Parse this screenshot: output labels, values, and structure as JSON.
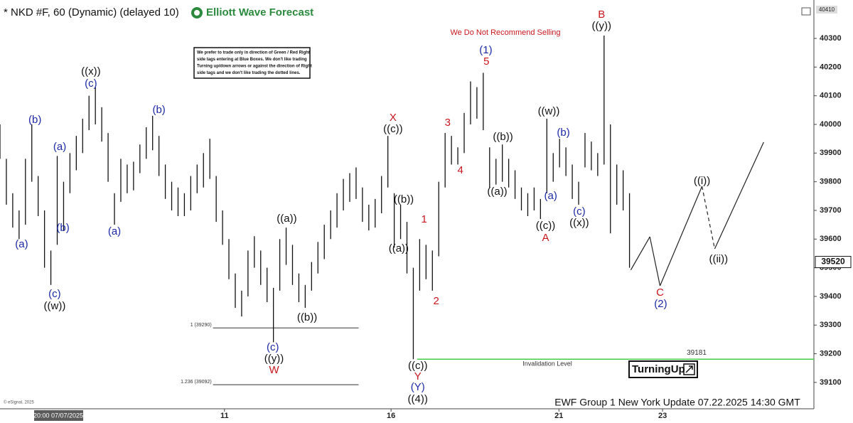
{
  "chart_data": {
    "type": "ohlc",
    "title": "* NKD #F, 60 (Dynamic) (delayed 10)",
    "brand": "Elliott Wave Forecast",
    "headline": "We Do Not Recommend Selling",
    "notice": [
      "We prefer to trade only in direction of Green / Red Right",
      "side tags entering at Blue Boxes. We don't like trading",
      "Turning up/down arrows or against the direction of Right",
      "side tags and we don't like trading the dotted lines."
    ],
    "footer": "EWF Group 1 New York Update 07.22.2025 14:30 GMT",
    "copyright": "© eSignal, 2025",
    "cursor_date": "20:00 07/07/2025",
    "logo_text": "TurningUp",
    "bar_color": "#111111",
    "xlim": [
      0,
      128
    ],
    "ylim": [
      39008,
      40434
    ],
    "yticks": [
      39100,
      39200,
      39300,
      39400,
      39500,
      39600,
      39700,
      39800,
      39900,
      40000,
      40100,
      40200,
      40300
    ],
    "xticks": [
      {
        "value": 35.3,
        "label": "11"
      },
      {
        "value": 61.5,
        "label": "16"
      },
      {
        "value": 87.9,
        "label": "21"
      },
      {
        "value": 104.2,
        "label": "23"
      }
    ],
    "top_price": 40410,
    "last_price": 39520,
    "bars": {
      "x": [
        0,
        1,
        2,
        3,
        4,
        5,
        6,
        7,
        8,
        9,
        10,
        11,
        12,
        13,
        14,
        15,
        16,
        17,
        18,
        19,
        20,
        21,
        22,
        23,
        24,
        25,
        26,
        27,
        28,
        29,
        30,
        31,
        32,
        33,
        34,
        35,
        36,
        37,
        38,
        39,
        40,
        41,
        42,
        43,
        44,
        45,
        46,
        47,
        48,
        49,
        50,
        51,
        52,
        53,
        54,
        55,
        56,
        57,
        58,
        59,
        60,
        61,
        62,
        63,
        64,
        65,
        66,
        67,
        68,
        69,
        70,
        71,
        72,
        73,
        74,
        75,
        76,
        77,
        78,
        79,
        80,
        81,
        82,
        83,
        84,
        85,
        86,
        87,
        88,
        89,
        90,
        91,
        92,
        93,
        94,
        95,
        96,
        97,
        98,
        99
      ],
      "high": [
        40000,
        39880,
        39760,
        39700,
        39880,
        40000,
        39820,
        39700,
        39560,
        39890,
        39800,
        39900,
        39960,
        40020,
        40100,
        40130,
        40060,
        39970,
        39760,
        39880,
        39860,
        39870,
        39930,
        39990,
        40030,
        39960,
        39860,
        39800,
        39780,
        39760,
        39820,
        39860,
        39900,
        39950,
        39820,
        39700,
        39600,
        39480,
        39420,
        39560,
        39610,
        39560,
        39500,
        39430,
        39600,
        39640,
        39580,
        39480,
        39440,
        39520,
        39590,
        39650,
        39700,
        39760,
        39810,
        39830,
        39850,
        39780,
        39720,
        39740,
        39820,
        39960,
        39760,
        39720,
        39660,
        39500,
        39600,
        39580,
        39560,
        39800,
        39970,
        39960,
        39920,
        40040,
        40150,
        40130,
        40180,
        39920,
        39880,
        39930,
        39880,
        39840,
        39780,
        39760,
        39780,
        39740,
        40020,
        39900,
        39950,
        39920,
        39860,
        39800,
        39970,
        39940,
        39900,
        40310,
        40000,
        39860,
        39840,
        39760
      ],
      "low": [
        39880,
        39720,
        39640,
        39600,
        39650,
        39800,
        39680,
        39500,
        39440,
        39580,
        39630,
        39760,
        39840,
        39900,
        39980,
        40000,
        39940,
        39800,
        39650,
        39730,
        39760,
        39770,
        39830,
        39880,
        39910,
        39820,
        39740,
        39700,
        39680,
        39680,
        39700,
        39760,
        39780,
        39810,
        39660,
        39580,
        39460,
        39360,
        39330,
        39400,
        39500,
        39440,
        39380,
        39240,
        39420,
        39510,
        39440,
        39380,
        39360,
        39420,
        39480,
        39530,
        39600,
        39640,
        39700,
        39730,
        39740,
        39660,
        39630,
        39640,
        39690,
        39780,
        39570,
        39600,
        39480,
        39181,
        39420,
        39460,
        39420,
        39540,
        39780,
        39860,
        39860,
        39900,
        40000,
        40020,
        39980,
        39780,
        39790,
        39800,
        39780,
        39740,
        39700,
        39680,
        39700,
        39670,
        39760,
        39800,
        39850,
        39820,
        39740,
        39720,
        39850,
        39840,
        39820,
        39860,
        39620,
        39720,
        39700,
        39500
      ]
    },
    "levels": [
      {
        "value": 39290,
        "label": "1 (39290)",
        "x_range": [
          33.5,
          56.4
        ]
      },
      {
        "value": 39092,
        "label": "1.236 (39092)",
        "x_range": [
          33.5,
          56.4
        ]
      }
    ],
    "invalidation": {
      "value": 39181,
      "name": "Invalidation Level",
      "color": "#44cc44",
      "x_range": [
        65.6,
        128
      ]
    },
    "projection": {
      "x": [
        99.2,
        102.2,
        103.8,
        110.4,
        112.4,
        120.1
      ],
      "y": [
        39492,
        39608,
        39437,
        39784,
        39566,
        39938
      ],
      "dashed_segments": [
        3
      ]
    },
    "label_colors": {
      "blue": "#1c2aa6",
      "red": "#c8161d",
      "black": "#111111"
    },
    "annotations": [
      {
        "text": "(a)",
        "x": 3.4,
        "y": 39581,
        "color": "blue"
      },
      {
        "text": "(b)",
        "x": 5.5,
        "y": 40015,
        "color": "blue"
      },
      {
        "text": "(c)",
        "x": 8.6,
        "y": 39407,
        "color": "blue"
      },
      {
        "text": "((w))",
        "x": 8.6,
        "y": 39365,
        "color": "black"
      },
      {
        "text": "(a)",
        "x": 9.4,
        "y": 39921,
        "color": "blue"
      },
      {
        "text": "(b)",
        "x": 9.9,
        "y": 39638,
        "color": "blue"
      },
      {
        "text": "((x))",
        "x": 14.3,
        "y": 40183,
        "color": "black"
      },
      {
        "text": "(c)",
        "x": 14.3,
        "y": 40141,
        "color": "blue"
      },
      {
        "text": "(a)",
        "x": 18,
        "y": 39625,
        "color": "blue"
      },
      {
        "text": "(b)",
        "x": 25,
        "y": 40050,
        "color": "blue"
      },
      {
        "text": "((a))",
        "x": 45.1,
        "y": 39670,
        "color": "black"
      },
      {
        "text": "((b))",
        "x": 48.3,
        "y": 39325,
        "color": "black"
      },
      {
        "text": "(c)",
        "x": 42.9,
        "y": 39221,
        "color": "blue"
      },
      {
        "text": "((y))",
        "x": 43.1,
        "y": 39181,
        "color": "black"
      },
      {
        "text": "W",
        "x": 43.1,
        "y": 39142,
        "color": "red"
      },
      {
        "text": "X",
        "x": 61.8,
        "y": 40022,
        "color": "red"
      },
      {
        "text": "((c))",
        "x": 61.8,
        "y": 39983,
        "color": "black"
      },
      {
        "text": "((b))",
        "x": 63.5,
        "y": 39737,
        "color": "black"
      },
      {
        "text": "((a))",
        "x": 62.7,
        "y": 39566,
        "color": "black"
      },
      {
        "text": "1",
        "x": 66.7,
        "y": 39668,
        "color": "red"
      },
      {
        "text": "2",
        "x": 68.6,
        "y": 39382,
        "color": "red"
      },
      {
        "text": "3",
        "x": 70.4,
        "y": 40005,
        "color": "red"
      },
      {
        "text": "4",
        "x": 72.4,
        "y": 39839,
        "color": "red"
      },
      {
        "text": "5",
        "x": 76.5,
        "y": 40218,
        "color": "red"
      },
      {
        "text": "(1)",
        "x": 76.4,
        "y": 40258,
        "color": "blue"
      },
      {
        "text": "((b))",
        "x": 79.1,
        "y": 39955,
        "color": "black"
      },
      {
        "text": "((a))",
        "x": 78.2,
        "y": 39764,
        "color": "black"
      },
      {
        "text": "((w))",
        "x": 86.3,
        "y": 40045,
        "color": "black"
      },
      {
        "text": "(b)",
        "x": 88.6,
        "y": 39970,
        "color": "blue"
      },
      {
        "text": "(a)",
        "x": 86.6,
        "y": 39749,
        "color": "blue"
      },
      {
        "text": "(c)",
        "x": 91.1,
        "y": 39695,
        "color": "blue"
      },
      {
        "text": "((x))",
        "x": 91.1,
        "y": 39655,
        "color": "black"
      },
      {
        "text": "((c))",
        "x": 85.8,
        "y": 39645,
        "color": "black"
      },
      {
        "text": "A",
        "x": 85.8,
        "y": 39603,
        "color": "red"
      },
      {
        "text": "B",
        "x": 94.6,
        "y": 40382,
        "color": "red"
      },
      {
        "text": "((y))",
        "x": 94.6,
        "y": 40342,
        "color": "black"
      },
      {
        "text": "((i))",
        "x": 110.4,
        "y": 39802,
        "color": "black"
      },
      {
        "text": "((ii))",
        "x": 113,
        "y": 39529,
        "color": "black"
      },
      {
        "text": "C",
        "x": 103.8,
        "y": 39412,
        "color": "red"
      },
      {
        "text": "(2)",
        "x": 103.9,
        "y": 39372,
        "color": "blue"
      },
      {
        "text": "((c))",
        "x": 65.7,
        "y": 39157,
        "color": "black"
      },
      {
        "text": "Y",
        "x": 65.7,
        "y": 39120,
        "color": "red"
      },
      {
        "text": "(Y)",
        "x": 65.7,
        "y": 39082,
        "color": "blue"
      },
      {
        "text": "((4))",
        "x": 65.7,
        "y": 39040,
        "color": "black"
      }
    ]
  }
}
